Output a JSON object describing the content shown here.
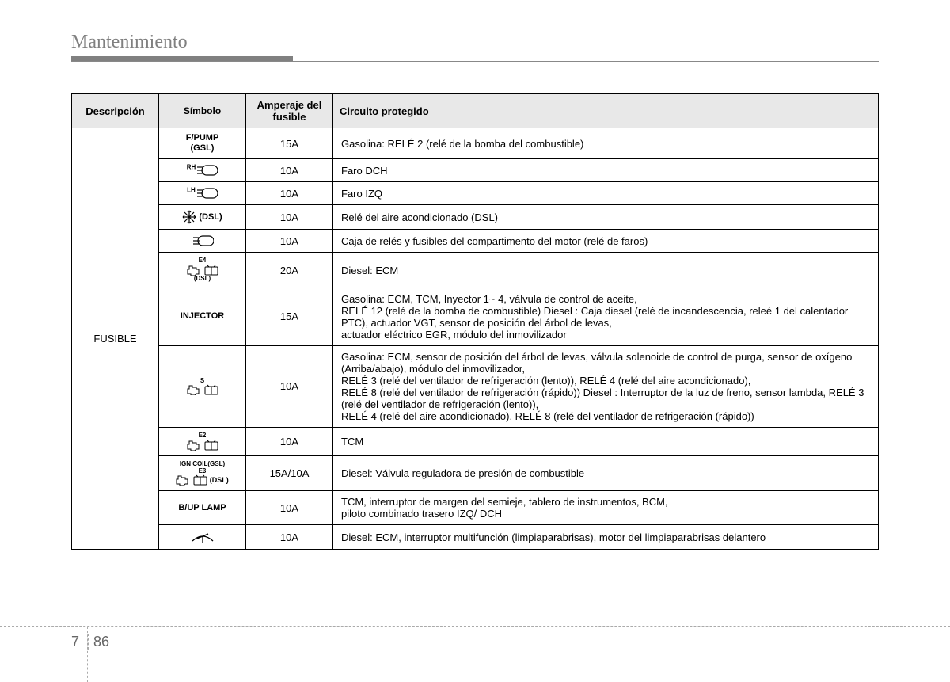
{
  "page_title": "Mantenimiento",
  "headers": {
    "description": "Descripción",
    "symbol": "Símbolo",
    "amperage": "Amperaje del fusible",
    "circuit": "Circuito protegido"
  },
  "group_label": "FUSIBLE",
  "rows": [
    {
      "symbol_type": "text",
      "symbol_text": "F/PUMP\n(GSL)",
      "amperage": "15A",
      "circuit": "Gasolina: RELÉ 2 (relé de la bomba del combustible)"
    },
    {
      "symbol_type": "headlight",
      "symbol_sup": "RH",
      "amperage": "10A",
      "circuit": "Faro DCH"
    },
    {
      "symbol_type": "headlight",
      "symbol_sup": "LH",
      "amperage": "10A",
      "circuit": "Faro IZQ"
    },
    {
      "symbol_type": "snowflake",
      "symbol_suffix": " (DSL)",
      "amperage": "10A",
      "circuit": "Relé del aire acondicionado (DSL)"
    },
    {
      "symbol_type": "headlight",
      "symbol_sup": "",
      "amperage": "10A",
      "circuit": "Caja de relés y fusibles del compartimento del motor (relé de faros)"
    },
    {
      "symbol_type": "engine",
      "symbol_sup": "E4",
      "symbol_sub": "(DSL)",
      "amperage": "20A",
      "circuit": "Diesel: ECM"
    },
    {
      "symbol_type": "text",
      "symbol_text": "INJECTOR",
      "amperage": "15A",
      "circuit": "Gasolina: ECM, TCM, Inyector 1~ 4, válvula de control de aceite,\nRELÉ 12 (relé de la bomba de combustible) Diesel : Caja diesel (relé de incandescencia, releé 1 del calentador PTC), actuador VGT, sensor de posición del árbol de levas,\nactuador eléctrico EGR, módulo del inmovilizador"
    },
    {
      "symbol_type": "engine",
      "symbol_sup": "S",
      "symbol_sub": "",
      "amperage": "10A",
      "circuit": "Gasolina: ECM, sensor de posición del árbol de levas, válvula solenoide de control de purga, sensor de oxígeno (Arriba/abajo), módulo del inmovilizador,\nRELÉ 3 (relé del ventilador de refrigeración (lento)), RELÉ 4 (relé del aire acondicionado),\nRELÉ 8 (relé del ventilador de refrigeración (rápido)) Diesel : Interruptor de la luz de freno, sensor lambda, RELÉ 3 (relé del ventilador de refrigeración (lento)),\nRELÉ 4 (relé del aire acondicionado), RELÉ 8 (relé del ventilador de refrigeración (rápido))"
    },
    {
      "symbol_type": "engine",
      "symbol_sup": "E2",
      "symbol_sub": "",
      "amperage": "10A",
      "circuit": "TCM"
    },
    {
      "symbol_type": "engine",
      "symbol_sup": "IGN COIL(GSL)",
      "symbol_sup2": "E3",
      "symbol_suffix": " (DSL)",
      "amperage": "15A/10A",
      "circuit": "Diesel: Válvula reguladora de presión de combustible"
    },
    {
      "symbol_type": "text",
      "symbol_text": "B/UP LAMP",
      "amperage": "10A",
      "circuit": "TCM, interruptor de margen del semieje, tablero de instrumentos, BCM,\npiloto combinado trasero IZQ/ DCH"
    },
    {
      "symbol_type": "wiper",
      "amperage": "10A",
      "circuit": "Diesel: ECM, interruptor multifunción (limpiaparabrisas), motor del limpiaparabrisas delantero"
    }
  ],
  "page_number": {
    "chapter": "7",
    "page": "86"
  },
  "colors": {
    "header_bg": "#e8e8e8",
    "border": "#000000",
    "title_gray": "#808080",
    "text": "#000000"
  }
}
